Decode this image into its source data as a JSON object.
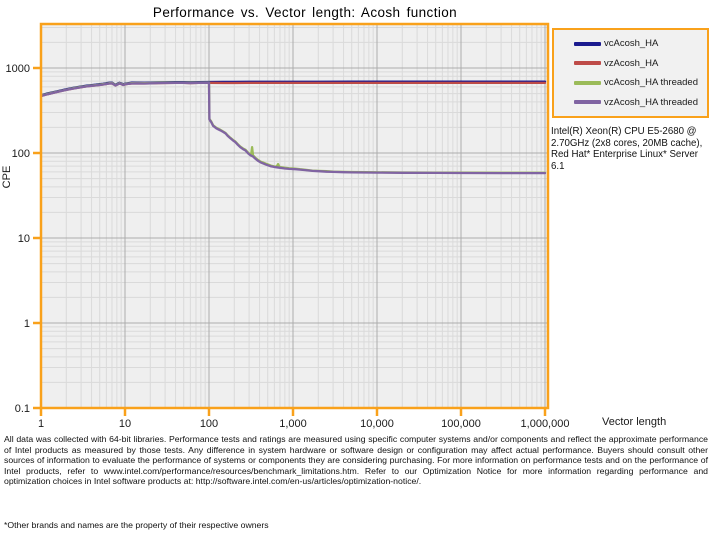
{
  "page": {
    "title": "Performance vs. Vector length: Acosh function"
  },
  "colors": {
    "axis_frame": "#F9A11B",
    "plot_bg": "#EFEFEF",
    "grid_major": "#ACACAC",
    "grid_minor": "#DADADA",
    "text": "#1a1a1a"
  },
  "annotations": {
    "cpu_info": "Intel(R) Xeon(R) CPU E5-2680 @ 2.70GHz (2x8 cores, 20MB cache), Red Hat* Enterprise Linux* Server 6.1"
  },
  "footer": {
    "disclaimer": "All data was collected with 64-bit libraries. Performance tests and ratings are measured using specific computer systems and/or components and reflect the approximate performance of Intel products as measured by those tests. Any difference in system hardware or software design or configuration may affect actual performance. Buyers should consult other sources of information to evaluate the performance of systems or components they are considering purchasing. For more information on performance tests and on the performance of Intel products, refer to www.intel.com/performance/resources/benchmark_limitations.htm.  Refer to our Optimization Notice for more information regarding performance and optimization choices in Intel software products at: http://software.intel.com/en-us/articles/optimization-notice/.",
    "footnote": "*Other brands and names are the property of their respective owners"
  },
  "chart_data": {
    "type": "line",
    "title": "Performance vs. Vector length: Acosh function",
    "xlabel": "Vector length",
    "ylabel": "CPE",
    "x_scale": "log",
    "y_scale": "log",
    "xlim": [
      1,
      1000000
    ],
    "ylim": [
      0.1,
      3000
    ],
    "grid": {
      "major": true,
      "minor": true
    },
    "legend_position": "outside-top-right",
    "x_tick_values": [
      1,
      10,
      100,
      1000,
      10000,
      100000,
      1000000
    ],
    "x_tick_labels": [
      "1",
      "10",
      "100",
      "1,000",
      "10,000",
      "100,000",
      "1,000,000"
    ],
    "y_tick_values": [
      1000,
      100,
      10,
      1,
      0.1
    ],
    "y_tick_labels": [
      "1000",
      "100",
      "10",
      "1",
      "0.1"
    ],
    "series": [
      {
        "name": "vcAcosh_HA",
        "color": "#1B1B8F",
        "points": [
          [
            1,
            477
          ],
          [
            1.2,
            502
          ],
          [
            1.5,
            528
          ],
          [
            2,
            563
          ],
          [
            2.5,
            588
          ],
          [
            3,
            606
          ],
          [
            3.5,
            619
          ],
          [
            4,
            629
          ],
          [
            4.5,
            636
          ],
          [
            5,
            644
          ],
          [
            5.5,
            652
          ],
          [
            6,
            662
          ],
          [
            6.5,
            670
          ],
          [
            7,
            674
          ],
          [
            7.3,
            656
          ],
          [
            7.7,
            634
          ],
          [
            8.2,
            655
          ],
          [
            8.6,
            670
          ],
          [
            9,
            661
          ],
          [
            9.5,
            644
          ],
          [
            10,
            654
          ],
          [
            11,
            665
          ],
          [
            12,
            671
          ],
          [
            14,
            674
          ],
          [
            17,
            670
          ],
          [
            20,
            674
          ],
          [
            25,
            677
          ],
          [
            30,
            679
          ],
          [
            40,
            680
          ],
          [
            50,
            681
          ],
          [
            60,
            678
          ],
          [
            75,
            681
          ],
          [
            100,
            684
          ],
          [
            150,
            686
          ],
          [
            200,
            687
          ],
          [
            300,
            688
          ],
          [
            500,
            688
          ],
          [
            1000,
            689
          ],
          [
            2000,
            689
          ],
          [
            5000,
            690
          ],
          [
            10000,
            690
          ],
          [
            20000,
            690
          ],
          [
            50000,
            690
          ],
          [
            100000,
            690
          ],
          [
            300000,
            690
          ],
          [
            1000000,
            690
          ]
        ]
      },
      {
        "name": "vzAcosh_HA",
        "color": "#BE4B48",
        "points": [
          [
            1,
            468
          ],
          [
            1.2,
            492
          ],
          [
            1.5,
            518
          ],
          [
            2,
            552
          ],
          [
            2.5,
            576
          ],
          [
            3,
            594
          ],
          [
            3.5,
            607
          ],
          [
            4,
            617
          ],
          [
            4.5,
            624
          ],
          [
            5,
            631
          ],
          [
            5.5,
            639
          ],
          [
            6,
            649
          ],
          [
            6.5,
            657
          ],
          [
            7,
            661
          ],
          [
            7.3,
            643
          ],
          [
            7.7,
            622
          ],
          [
            8.2,
            642
          ],
          [
            8.6,
            657
          ],
          [
            9,
            648
          ],
          [
            9.5,
            631
          ],
          [
            10,
            641
          ],
          [
            11,
            652
          ],
          [
            12,
            658
          ],
          [
            14,
            661
          ],
          [
            17,
            657
          ],
          [
            20,
            661
          ],
          [
            25,
            664
          ],
          [
            30,
            666
          ],
          [
            40,
            667
          ],
          [
            50,
            668
          ],
          [
            60,
            665
          ],
          [
            75,
            668
          ],
          [
            100,
            670
          ],
          [
            150,
            666
          ],
          [
            200,
            666
          ],
          [
            300,
            667
          ],
          [
            500,
            667
          ],
          [
            1000,
            667
          ],
          [
            2000,
            667
          ],
          [
            5000,
            667
          ],
          [
            10000,
            668
          ],
          [
            20000,
            667
          ],
          [
            50000,
            667
          ],
          [
            100000,
            668
          ],
          [
            300000,
            667
          ],
          [
            1000000,
            668
          ]
        ]
      },
      {
        "name": "vcAcosh_HA threaded",
        "color": "#9BBB59",
        "points": [
          [
            1,
            472
          ],
          [
            1.2,
            496
          ],
          [
            1.5,
            522
          ],
          [
            2,
            556
          ],
          [
            2.5,
            581
          ],
          [
            3,
            599
          ],
          [
            3.5,
            612
          ],
          [
            4,
            622
          ],
          [
            4.5,
            629
          ],
          [
            5,
            636
          ],
          [
            5.5,
            644
          ],
          [
            6,
            654
          ],
          [
            6.5,
            662
          ],
          [
            7,
            666
          ],
          [
            7.3,
            648
          ],
          [
            7.7,
            627
          ],
          [
            8.2,
            647
          ],
          [
            8.6,
            662
          ],
          [
            9,
            653
          ],
          [
            9.5,
            636
          ],
          [
            10,
            646
          ],
          [
            11,
            657
          ],
          [
            12,
            663
          ],
          [
            14,
            666
          ],
          [
            17,
            662
          ],
          [
            20,
            666
          ],
          [
            25,
            669
          ],
          [
            30,
            671
          ],
          [
            40,
            672
          ],
          [
            50,
            673
          ],
          [
            60,
            670
          ],
          [
            75,
            673
          ],
          [
            100,
            675
          ],
          [
            101,
            252
          ],
          [
            106,
            236
          ],
          [
            112,
            212
          ],
          [
            122,
            198
          ],
          [
            136,
            188
          ],
          [
            147,
            179
          ],
          [
            157,
            172
          ],
          [
            167,
            161
          ],
          [
            180,
            151
          ],
          [
            192,
            143
          ],
          [
            206,
            136
          ],
          [
            220,
            127
          ],
          [
            236,
            119
          ],
          [
            254,
            113
          ],
          [
            272,
            109
          ],
          [
            292,
            101
          ],
          [
            312,
            96
          ],
          [
            318,
            97
          ],
          [
            326,
            117
          ],
          [
            334,
            94
          ],
          [
            356,
            88
          ],
          [
            382,
            83
          ],
          [
            412,
            79
          ],
          [
            442,
            77
          ],
          [
            472,
            75
          ],
          [
            508,
            73
          ],
          [
            544,
            71
          ],
          [
            584,
            70
          ],
          [
            624,
            69
          ],
          [
            648,
            71
          ],
          [
            664,
            74
          ],
          [
            684,
            70
          ],
          [
            704,
            68
          ],
          [
            804,
            67
          ],
          [
            904,
            66
          ],
          [
            1064,
            65.5
          ],
          [
            1204,
            64.5
          ],
          [
            1404,
            63.5
          ],
          [
            1704,
            62
          ],
          [
            2004,
            61.5
          ],
          [
            2504,
            61
          ],
          [
            3004,
            60.5
          ],
          [
            4004,
            60
          ],
          [
            5004,
            59.8
          ],
          [
            7004,
            59.5
          ],
          [
            10004,
            59.3
          ],
          [
            20004,
            59
          ],
          [
            50004,
            58.8
          ],
          [
            100004,
            58.7
          ],
          [
            300004,
            58.5
          ],
          [
            1000000,
            58.5
          ]
        ]
      },
      {
        "name": "vzAcosh_HA threaded",
        "color": "#8064A2",
        "points": [
          [
            1,
            468
          ],
          [
            1.2,
            492
          ],
          [
            1.5,
            518
          ],
          [
            2,
            552
          ],
          [
            2.5,
            576
          ],
          [
            3,
            594
          ],
          [
            3.5,
            607
          ],
          [
            4,
            617
          ],
          [
            4.5,
            624
          ],
          [
            5,
            631
          ],
          [
            5.5,
            639
          ],
          [
            6,
            649
          ],
          [
            6.5,
            657
          ],
          [
            7,
            661
          ],
          [
            7.3,
            643
          ],
          [
            7.7,
            622
          ],
          [
            8.2,
            642
          ],
          [
            8.6,
            657
          ],
          [
            9,
            648
          ],
          [
            9.5,
            631
          ],
          [
            10,
            641
          ],
          [
            11,
            652
          ],
          [
            12,
            658
          ],
          [
            14,
            661
          ],
          [
            17,
            657
          ],
          [
            20,
            661
          ],
          [
            25,
            664
          ],
          [
            30,
            666
          ],
          [
            40,
            667
          ],
          [
            50,
            668
          ],
          [
            60,
            665
          ],
          [
            75,
            668
          ],
          [
            100,
            670
          ],
          [
            101,
            248
          ],
          [
            106,
            232
          ],
          [
            112,
            209
          ],
          [
            122,
            195
          ],
          [
            136,
            185
          ],
          [
            147,
            177
          ],
          [
            157,
            170
          ],
          [
            167,
            159
          ],
          [
            180,
            149
          ],
          [
            192,
            141
          ],
          [
            206,
            134
          ],
          [
            220,
            125
          ],
          [
            236,
            117
          ],
          [
            254,
            111
          ],
          [
            272,
            107
          ],
          [
            292,
            99
          ],
          [
            312,
            94
          ],
          [
            334,
            91
          ],
          [
            356,
            86
          ],
          [
            382,
            81
          ],
          [
            412,
            77.5
          ],
          [
            442,
            75.5
          ],
          [
            472,
            73.5
          ],
          [
            508,
            71.5
          ],
          [
            540,
            70
          ],
          [
            584,
            69
          ],
          [
            624,
            68
          ],
          [
            704,
            67
          ],
          [
            804,
            65.8
          ],
          [
            904,
            65
          ],
          [
            1064,
            64.5
          ],
          [
            1204,
            63.8
          ],
          [
            1404,
            63
          ],
          [
            1704,
            61.5
          ],
          [
            2004,
            61
          ],
          [
            2504,
            60.3
          ],
          [
            3004,
            60
          ],
          [
            4004,
            59.5
          ],
          [
            5004,
            59.2
          ],
          [
            7004,
            59
          ],
          [
            10004,
            58.8
          ],
          [
            20004,
            58.5
          ],
          [
            50004,
            58.3
          ],
          [
            100004,
            58.2
          ],
          [
            300004,
            58
          ],
          [
            1000000,
            58
          ]
        ]
      }
    ]
  }
}
